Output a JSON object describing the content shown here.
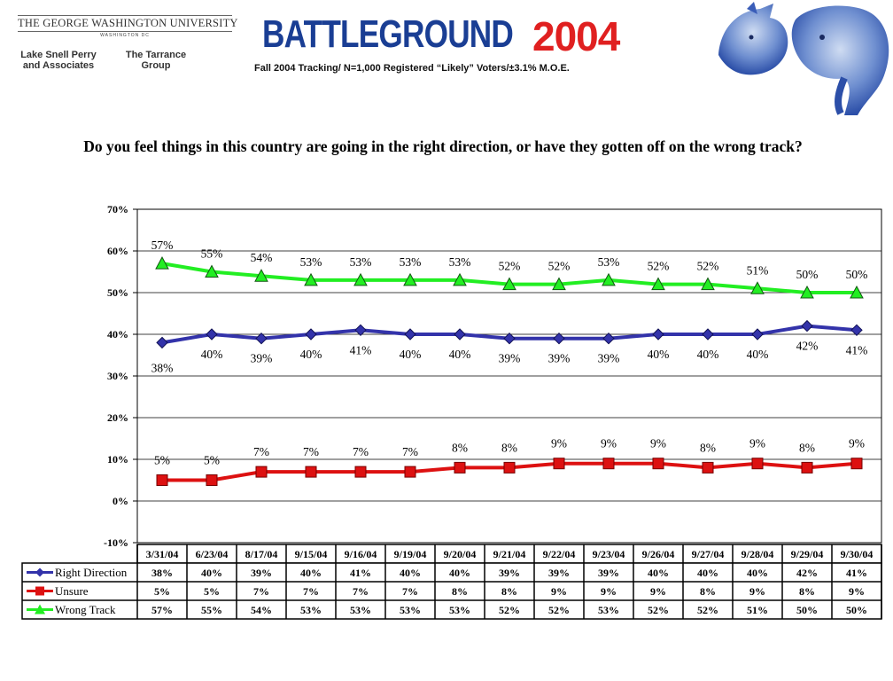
{
  "header": {
    "university": "THE GEORGE WASHINGTON UNIVERSITY",
    "university_sub": "WASHINGTON DC",
    "firm1": "Lake Snell Perry and Associates",
    "firm2": "The Tarrance Group",
    "logo_word": "BATTLEGROUND",
    "logo_year": "2004",
    "tracking": "Fall 2004 Tracking/ N=1,000 Registered “Likely” Voters/±3.1% M.O.E."
  },
  "question": "Do you feel things in this country are going in the right direction, or have they gotten off on the wrong track?",
  "chart_data": {
    "type": "line",
    "ylim": [
      -10,
      70
    ],
    "yticks": [
      "70%",
      "60%",
      "50%",
      "40%",
      "30%",
      "20%",
      "10%",
      "0%",
      "-10%"
    ],
    "grid": true,
    "categories": [
      "3/31/04",
      "6/23/04",
      "8/17/04",
      "9/15/04",
      "9/16/04",
      "9/19/04",
      "9/20/04",
      "9/21/04",
      "9/22/04",
      "9/23/04",
      "9/26/04",
      "9/27/04",
      "9/28/04",
      "9/29/04",
      "9/30/04"
    ],
    "series": [
      {
        "name": "Right Direction",
        "color": "#3333aa",
        "marker": "diamond",
        "values": [
          38,
          40,
          39,
          40,
          41,
          40,
          40,
          39,
          39,
          39,
          40,
          40,
          40,
          42,
          41
        ],
        "labels": [
          "38%",
          "40%",
          "39%",
          "40%",
          "41%",
          "40%",
          "40%",
          "39%",
          "39%",
          "39%",
          "40%",
          "40%",
          "40%",
          "42%",
          "41%"
        ]
      },
      {
        "name": "Unsure",
        "color": "#dd1111",
        "marker": "square",
        "values": [
          5,
          5,
          7,
          7,
          7,
          7,
          8,
          8,
          9,
          9,
          9,
          8,
          9,
          8,
          9
        ],
        "labels": [
          "5%",
          "5%",
          "7%",
          "7%",
          "7%",
          "7%",
          "8%",
          "8%",
          "9%",
          "9%",
          "9%",
          "8%",
          "9%",
          "8%",
          "9%"
        ]
      },
      {
        "name": "Wrong Track",
        "color": "#22ee22",
        "marker": "triangle",
        "values": [
          57,
          55,
          54,
          53,
          53,
          53,
          53,
          52,
          52,
          53,
          52,
          52,
          51,
          50,
          50
        ],
        "labels": [
          "57%",
          "55%",
          "54%",
          "53%",
          "53%",
          "53%",
          "53%",
          "52%",
          "52%",
          "53%",
          "52%",
          "52%",
          "51%",
          "50%",
          "50%"
        ]
      }
    ]
  }
}
